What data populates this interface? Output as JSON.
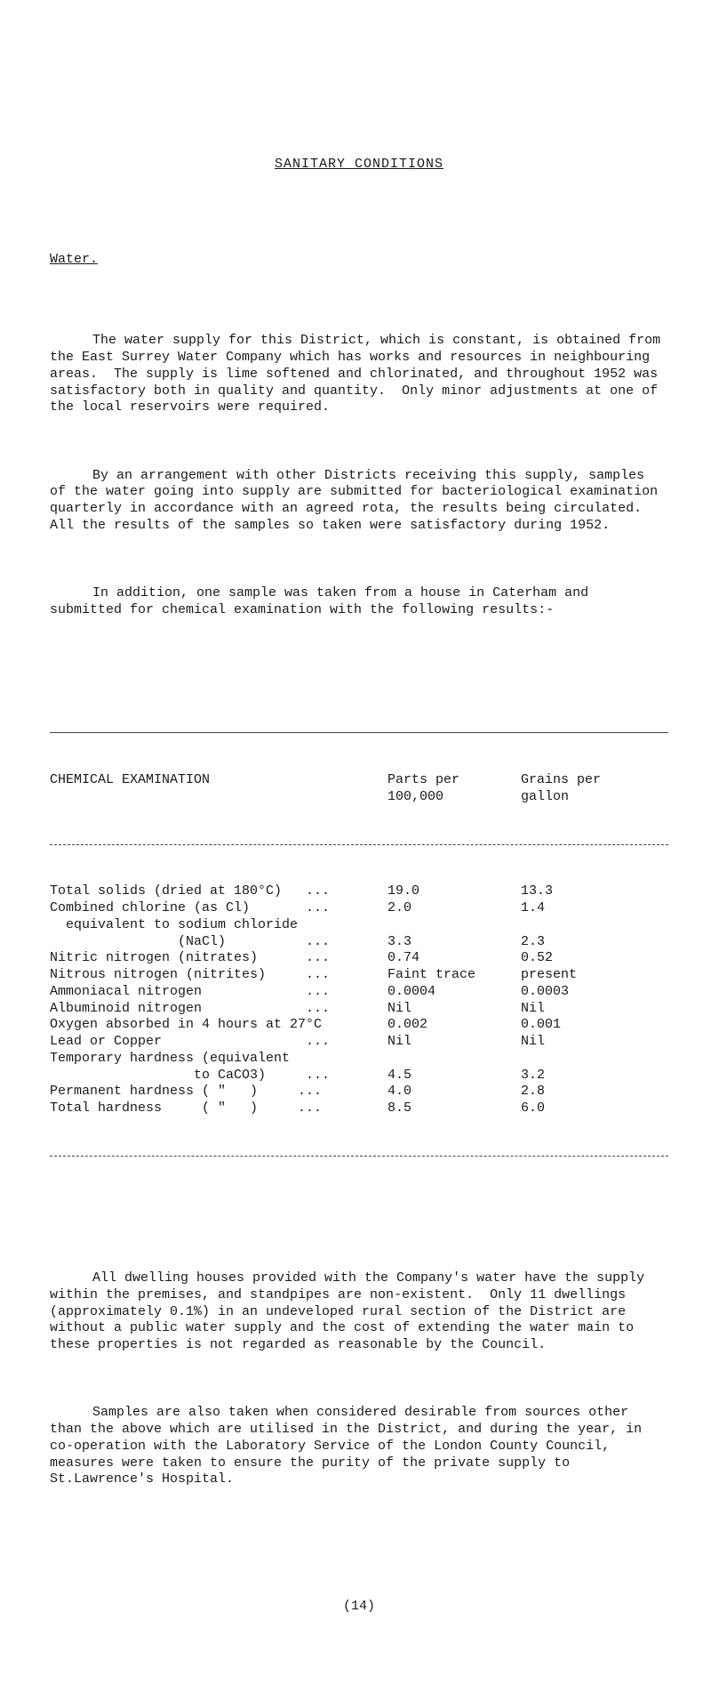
{
  "title": "SANITARY CONDITIONS",
  "subhead": "Water.",
  "para1": "The water supply for this District, which is constant, is obtained from the East Surrey Water Company which has works and resources in neighbouring areas.  The supply is lime softened and chlorinated, and throughout 1952 was satisfactory both in quality and quantity.  Only minor adjustments at one of the local reservoirs were required.",
  "para2": "By an arrangement with other Districts receiving this supply, samples of the water going into supply are submitted for bacteriological examination quarterly in accordance with an agreed rota, the results being circulated.  All the results of the samples so taken were satisfactory during 1952.",
  "para3": "In addition, one sample was taken from a house in Caterham and submitted for chemical examination with the following results:-",
  "tableHeader": {
    "col1": "CHEMICAL EXAMINATION",
    "col2": "Parts per\n100,000",
    "col3": "Grains per\ngallon"
  },
  "rows": [
    {
      "c1": "Total solids (dried at 180°C)   ...",
      "c2": "19.0",
      "c3": "13.3"
    },
    {
      "c1": "Combined chlorine (as Cl)       ...",
      "c2": "2.0",
      "c3": "1.4"
    },
    {
      "c1": "  equivalent to sodium chloride",
      "c2": "",
      "c3": ""
    },
    {
      "c1": "                (NaCl)          ...",
      "c2": "3.3",
      "c3": "2.3"
    },
    {
      "c1": "Nitric nitrogen (nitrates)      ...",
      "c2": "0.74",
      "c3": "0.52"
    },
    {
      "c1": "Nitrous nitrogen (nitrites)     ...",
      "c2": "Faint trace",
      "c3": "present"
    },
    {
      "c1": "Ammoniacal nitrogen             ...",
      "c2": "0.0004",
      "c3": "0.0003"
    },
    {
      "c1": "Albuminoid nitrogen             ...",
      "c2": "Nil",
      "c3": "Nil"
    },
    {
      "c1": "Oxygen absorbed in 4 hours at 27°C",
      "c2": "0.002",
      "c3": "0.001"
    },
    {
      "c1": "Lead or Copper                  ...",
      "c2": "Nil",
      "c3": "Nil"
    },
    {
      "c1": "Temporary hardness (equivalent",
      "c2": "",
      "c3": ""
    },
    {
      "c1": "                  to CaCO3)     ...",
      "c2": "4.5",
      "c3": "3.2"
    },
    {
      "c1": "Permanent hardness ( \"   )     ...",
      "c2": "4.0",
      "c3": "2.8"
    },
    {
      "c1": "Total hardness     ( \"   )     ...",
      "c2": "8.5",
      "c3": "6.0"
    }
  ],
  "para4": "All dwelling houses provided with the Company's water have the supply within the premises, and standpipes are non-existent.  Only 11 dwellings (approximately 0.1%) in an undeveloped rural section of the District are without a public water supply and the cost of extending the water main to these properties is not regarded as reasonable by the Council.",
  "para5": "Samples are also taken when considered desirable from sources other than the above which are utilised in the District, and during the year, in co-operation with the Laboratory Service of the London County Council, measures were taken to ensure the purity of the private supply to St.Lawrence's Hospital.",
  "pageNumber": "(14)"
}
